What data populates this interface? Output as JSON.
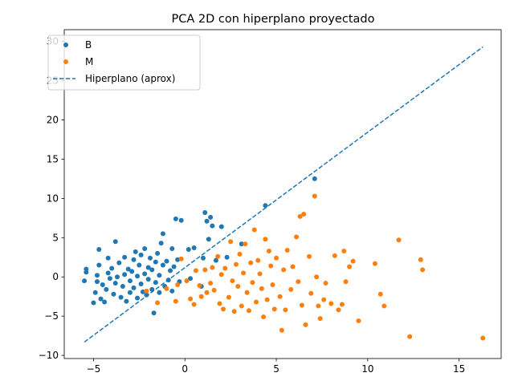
{
  "chart_data": {
    "type": "scatter",
    "title": "PCA 2D con hiperplano proyectado",
    "xlabel": "",
    "ylabel": "",
    "xlim": [
      -6.6,
      17.3
    ],
    "ylim": [
      -10.4,
      31.5
    ],
    "xticks": [
      -5,
      0,
      5,
      10,
      15
    ],
    "yticks": [
      -10,
      -5,
      0,
      5,
      10,
      15,
      20,
      25,
      30
    ],
    "grid": false,
    "legend_position": "top-left",
    "series": [
      {
        "name": "B",
        "color": "#1f77b4",
        "marker": "circle",
        "points": [
          [
            -5.5,
            -0.5
          ],
          [
            -5.4,
            0.6
          ],
          [
            -5.4,
            1.0
          ],
          [
            -5.0,
            -3.3
          ],
          [
            -4.9,
            -2.0
          ],
          [
            -4.8,
            -0.6
          ],
          [
            -4.8,
            0.2
          ],
          [
            -4.7,
            1.5
          ],
          [
            -4.7,
            3.5
          ],
          [
            -4.6,
            -2.8
          ],
          [
            -4.5,
            -1.0
          ],
          [
            -4.4,
            -3.2
          ],
          [
            -4.3,
            -1.6
          ],
          [
            -4.2,
            0.5
          ],
          [
            -4.2,
            2.4
          ],
          [
            -4.1,
            -0.2
          ],
          [
            -4.0,
            1.1
          ],
          [
            -3.9,
            -2.2
          ],
          [
            -3.8,
            4.5
          ],
          [
            -3.8,
            -0.8
          ],
          [
            -3.7,
            0.0
          ],
          [
            -3.6,
            1.8
          ],
          [
            -3.5,
            -2.6
          ],
          [
            -3.4,
            -1.2
          ],
          [
            -3.3,
            2.5
          ],
          [
            -3.3,
            0.3
          ],
          [
            -3.2,
            -3.1
          ],
          [
            -3.1,
            1.0
          ],
          [
            -3.0,
            -0.5
          ],
          [
            -3.0,
            -2.0
          ],
          [
            -2.9,
            0.7
          ],
          [
            -2.8,
            2.2
          ],
          [
            -2.8,
            -1.4
          ],
          [
            -2.7,
            3.2
          ],
          [
            -2.6,
            0.1
          ],
          [
            -2.6,
            -2.7
          ],
          [
            -2.5,
            1.5
          ],
          [
            -2.4,
            -0.9
          ],
          [
            -2.4,
            2.8
          ],
          [
            -2.3,
            -1.9
          ],
          [
            -2.2,
            0.4
          ],
          [
            -2.2,
            3.6
          ],
          [
            -2.1,
            -2.3
          ],
          [
            -2.0,
            1.2
          ],
          [
            -2.0,
            -0.3
          ],
          [
            -1.9,
            2.4
          ],
          [
            -1.8,
            -1.6
          ],
          [
            -1.8,
            0.9
          ],
          [
            -1.7,
            -4.6
          ],
          [
            -1.6,
            1.9
          ],
          [
            -1.6,
            -0.7
          ],
          [
            -1.5,
            3.0
          ],
          [
            -1.4,
            -2.0
          ],
          [
            -1.4,
            0.2
          ],
          [
            -1.3,
            4.3
          ],
          [
            -1.2,
            1.5
          ],
          [
            -1.2,
            5.5
          ],
          [
            -1.1,
            -1.2
          ],
          [
            -1.0,
            2.0
          ],
          [
            -0.9,
            -0.4
          ],
          [
            -0.8,
            0.8
          ],
          [
            -0.7,
            3.6
          ],
          [
            -0.7,
            -1.8
          ],
          [
            -0.6,
            1.3
          ],
          [
            -0.5,
            7.4
          ],
          [
            -0.4,
            2.2
          ],
          [
            -0.3,
            -0.6
          ],
          [
            -0.2,
            7.2
          ],
          [
            0.2,
            3.5
          ],
          [
            0.3,
            -0.2
          ],
          [
            0.5,
            3.7
          ],
          [
            0.9,
            -1.2
          ],
          [
            1.0,
            2.4
          ],
          [
            1.1,
            8.2
          ],
          [
            1.2,
            7.1
          ],
          [
            1.3,
            4.8
          ],
          [
            1.4,
            7.6
          ],
          [
            1.5,
            6.5
          ],
          [
            1.7,
            2.1
          ],
          [
            2.0,
            6.4
          ],
          [
            2.3,
            2.5
          ],
          [
            3.1,
            4.2
          ],
          [
            4.4,
            9.1
          ],
          [
            7.1,
            12.5
          ]
        ]
      },
      {
        "name": "M",
        "color": "#ff7f0e",
        "marker": "circle",
        "points": [
          [
            -2.1,
            -1.8
          ],
          [
            -1.5,
            -3.3
          ],
          [
            -1.0,
            -1.5
          ],
          [
            -0.5,
            -3.1
          ],
          [
            -0.4,
            -1.0
          ],
          [
            -0.2,
            2.3
          ],
          [
            0.1,
            -0.5
          ],
          [
            0.3,
            -2.8
          ],
          [
            0.5,
            -3.5
          ],
          [
            0.6,
            0.8
          ],
          [
            0.8,
            -1.1
          ],
          [
            0.9,
            -2.5
          ],
          [
            1.1,
            0.9
          ],
          [
            1.2,
            -2.0
          ],
          [
            1.4,
            -0.8
          ],
          [
            1.5,
            1.2
          ],
          [
            1.6,
            -1.7
          ],
          [
            1.8,
            2.6
          ],
          [
            1.9,
            -3.4
          ],
          [
            2.0,
            0.3
          ],
          [
            2.1,
            -4.1
          ],
          [
            2.2,
            1.1
          ],
          [
            2.4,
            -2.6
          ],
          [
            2.5,
            4.5
          ],
          [
            2.6,
            -0.5
          ],
          [
            2.7,
            -4.4
          ],
          [
            2.8,
            1.6
          ],
          [
            2.9,
            -1.2
          ],
          [
            3.0,
            2.9
          ],
          [
            3.1,
            -3.7
          ],
          [
            3.2,
            0.5
          ],
          [
            3.3,
            4.2
          ],
          [
            3.4,
            -2.0
          ],
          [
            3.5,
            -4.3
          ],
          [
            3.6,
            1.8
          ],
          [
            3.7,
            -0.7
          ],
          [
            3.8,
            6.0
          ],
          [
            3.9,
            -3.2
          ],
          [
            4.0,
            2.1
          ],
          [
            4.1,
            0.4
          ],
          [
            4.2,
            -1.5
          ],
          [
            4.3,
            -5.1
          ],
          [
            4.4,
            4.8
          ],
          [
            4.5,
            -2.9
          ],
          [
            4.6,
            3.3
          ],
          [
            4.7,
            1.4
          ],
          [
            4.8,
            -1.0
          ],
          [
            4.9,
            -4.1
          ],
          [
            5.0,
            2.4
          ],
          [
            5.2,
            -2.5
          ],
          [
            5.3,
            -6.8
          ],
          [
            5.4,
            0.9
          ],
          [
            5.5,
            -4.2
          ],
          [
            5.6,
            3.4
          ],
          [
            5.8,
            -1.6
          ],
          [
            5.9,
            1.3
          ],
          [
            6.1,
            5.1
          ],
          [
            6.2,
            -0.6
          ],
          [
            6.3,
            7.7
          ],
          [
            6.4,
            -3.6
          ],
          [
            6.5,
            8.0
          ],
          [
            6.6,
            -6.1
          ],
          [
            6.8,
            2.6
          ],
          [
            6.9,
            -2.1
          ],
          [
            7.1,
            10.3
          ],
          [
            7.2,
            0.0
          ],
          [
            7.3,
            -3.7
          ],
          [
            7.4,
            -5.3
          ],
          [
            7.6,
            -2.9
          ],
          [
            7.7,
            -0.8
          ],
          [
            8.0,
            -3.4
          ],
          [
            8.2,
            2.7
          ],
          [
            8.4,
            -4.2
          ],
          [
            8.6,
            -3.5
          ],
          [
            8.7,
            3.3
          ],
          [
            8.8,
            -0.6
          ],
          [
            9.0,
            1.3
          ],
          [
            9.2,
            2.0
          ],
          [
            9.5,
            -5.6
          ],
          [
            10.4,
            1.7
          ],
          [
            10.7,
            -2.2
          ],
          [
            10.9,
            -3.7
          ],
          [
            11.7,
            4.7
          ],
          [
            12.3,
            -7.6
          ],
          [
            12.9,
            2.2
          ],
          [
            13.0,
            0.9
          ],
          [
            16.3,
            -7.8
          ]
        ]
      },
      {
        "name": "Hiperplano (aprox)",
        "color": "#1f77b4",
        "style": "dashed",
        "line": [
          [
            -5.5,
            -8.3
          ],
          [
            16.3,
            29.3
          ]
        ]
      }
    ]
  }
}
